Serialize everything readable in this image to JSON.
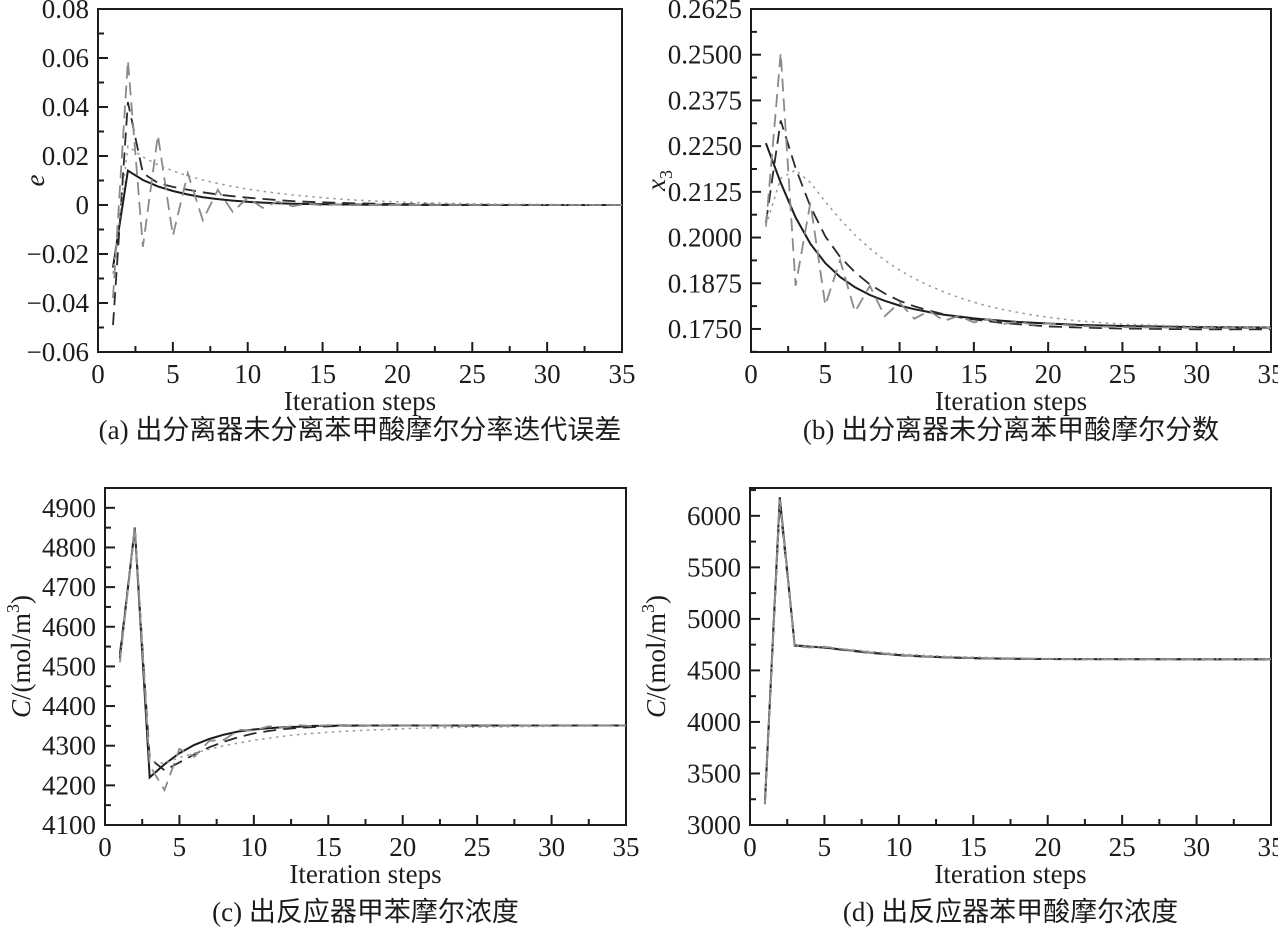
{
  "page": {
    "background_color": "#ffffff",
    "ink_color": "#1c1c1c",
    "gray_line_color": "#8a8a8a",
    "dotted_line_color": "#9a9a9a"
  },
  "chart_data": {
    "note": "see figure.panels - four line charts of iterative convergence"
  },
  "figure": {
    "panels": [
      {
        "id": "a",
        "type": "line",
        "caption": "(a) 出分离器未分离苯甲酸摩尔分率迭代误差",
        "xlabel": "Iteration steps",
        "ylabel_segments": [
          {
            "t": "i",
            "v": "e"
          }
        ],
        "xlim": [
          0,
          35
        ],
        "ylim": [
          -0.06,
          0.08
        ],
        "xticks": [
          0,
          5,
          10,
          15,
          20,
          25,
          30,
          35
        ],
        "xtick_labels": [
          "0",
          "5",
          "10",
          "15",
          "20",
          "25",
          "30",
          "35"
        ],
        "x_minor_step": 2.5,
        "yticks": [
          -0.06,
          -0.04,
          -0.02,
          0,
          0.02,
          0.04,
          0.06,
          0.08
        ],
        "ytick_labels": [
          "−0.06",
          "−0.04",
          "−0.02",
          "0",
          "0.02",
          "0.04",
          "0.06",
          "0.08"
        ],
        "y_minor_step": 0.01,
        "x": [
          1,
          2,
          3,
          4,
          5,
          6,
          7,
          8,
          9,
          10,
          11,
          12,
          13,
          14,
          15,
          16,
          17,
          18,
          19,
          20,
          22,
          25,
          30,
          35
        ],
        "series": [
          {
            "name": "solid",
            "color": "#1c1c1c",
            "dash": "solid",
            "values": [
              -0.0255,
              0.014,
              0.0102,
              0.0076,
              0.0057,
              0.0043,
              0.0032,
              0.0024,
              0.0018,
              0.0013,
              0.001,
              0.0007,
              0.0005,
              0.0004,
              0.0003,
              0.0002,
              0.0002,
              0.0001,
              0.0001,
              0.0001,
              0,
              0,
              0,
              0
            ]
          },
          {
            "name": "dashed",
            "color": "#2a2a2a",
            "dash": "long-dash",
            "values": [
              -0.049,
              0.042,
              0.013,
              0.009,
              0.0074,
              0.0062,
              0.0052,
              0.0043,
              0.0036,
              0.003,
              0.0025,
              0.002,
              0.0016,
              0.0013,
              0.0011,
              0.0009,
              0.0007,
              0.0006,
              0.0005,
              0.0004,
              0.0002,
              0.0001,
              0,
              0
            ]
          },
          {
            "name": "dashed-oscillating",
            "color": "#8a8a8a",
            "dash": "long-dash",
            "values": [
              -0.038,
              0.059,
              -0.017,
              0.0285,
              -0.0125,
              0.013,
              -0.0062,
              0.0062,
              -0.0028,
              0.003,
              -0.0012,
              0.0014,
              -0.0005,
              0.0006,
              -0.0002,
              0.0003,
              -0.0001,
              0.0001,
              0,
              0.0001,
              0,
              0,
              0,
              0
            ]
          },
          {
            "name": "dotted",
            "color": "#9a9a9a",
            "dash": "dot",
            "values": [
              -0.028,
              0.024,
              0.0196,
              0.0164,
              0.0139,
              0.0119,
              0.0102,
              0.0088,
              0.0075,
              0.0065,
              0.0056,
              0.0048,
              0.0041,
              0.0035,
              0.003,
              0.0025,
              0.0021,
              0.0018,
              0.0015,
              0.0013,
              0.0009,
              0.0005,
              0.0002,
              0
            ]
          }
        ]
      },
      {
        "id": "b",
        "type": "line",
        "caption": "(b) 出分离器未分离苯甲酸摩尔分数",
        "xlabel": "Iteration steps",
        "ylabel_segments": [
          {
            "t": "i",
            "v": "x"
          },
          {
            "t": "sub",
            "v": "3"
          }
        ],
        "xlim": [
          0,
          35
        ],
        "ylim": [
          0.1687,
          0.2625
        ],
        "xticks": [
          0,
          5,
          10,
          15,
          20,
          25,
          30,
          35
        ],
        "xtick_labels": [
          "0",
          "5",
          "10",
          "15",
          "20",
          "25",
          "30",
          "35"
        ],
        "x_minor_step": 2.5,
        "yticks": [
          0.175,
          0.1875,
          0.2,
          0.2125,
          0.225,
          0.2375,
          0.25,
          0.2625
        ],
        "ytick_labels": [
          "0.1750",
          "0.1875",
          "0.2000",
          "0.2125",
          "0.2250",
          "0.2375",
          "0.2500",
          "0.2625"
        ],
        "y_minor_step": 0.00625,
        "x": [
          1,
          2,
          3,
          4,
          5,
          6,
          7,
          8,
          9,
          10,
          11,
          12,
          13,
          14,
          15,
          16,
          17,
          18,
          19,
          20,
          22,
          25,
          30,
          35
        ],
        "series": [
          {
            "name": "solid",
            "color": "#1c1c1c",
            "dash": "solid",
            "values": [
              0.2258,
              0.215,
              0.2055,
              0.1983,
              0.193,
              0.1892,
              0.1864,
              0.1843,
              0.1827,
              0.1814,
              0.1804,
              0.1796,
              0.1789,
              0.1784,
              0.1779,
              0.1775,
              0.1772,
              0.1769,
              0.1767,
              0.1765,
              0.1761,
              0.1758,
              0.1755,
              0.1754
            ]
          },
          {
            "name": "dashed",
            "color": "#2a2a2a",
            "dash": "long-dash",
            "values": [
              0.204,
              0.232,
              0.219,
              0.2085,
              0.2003,
              0.1947,
              0.1905,
              0.1872,
              0.1847,
              0.1827,
              0.1812,
              0.18,
              0.179,
              0.1782,
              0.1776,
              0.1771,
              0.1766,
              0.1763,
              0.176,
              0.1757,
              0.1754,
              0.1751,
              0.1749,
              0.1749
            ]
          },
          {
            "name": "dashed-oscillating",
            "color": "#8a8a8a",
            "dash": "long-dash",
            "values": [
              0.203,
              0.2505,
              0.1868,
              0.2095,
              0.1815,
              0.1938,
              0.1797,
              0.1868,
              0.1785,
              0.1822,
              0.1778,
              0.18,
              0.1772,
              0.1786,
              0.1768,
              0.1777,
              0.1764,
              0.177,
              0.1761,
              0.1765,
              0.1758,
              0.1755,
              0.1753,
              0.1752
            ]
          },
          {
            "name": "dotted",
            "color": "#9a9a9a",
            "dash": "dot",
            "values": [
              0.2032,
              0.2162,
              0.2185,
              0.215,
              0.2098,
              0.205,
              0.2007,
              0.197,
              0.1938,
              0.1911,
              0.1888,
              0.1868,
              0.1851,
              0.1836,
              0.1823,
              0.1812,
              0.1803,
              0.1795,
              0.1788,
              0.1782,
              0.1772,
              0.1763,
              0.1757,
              0.1755
            ]
          }
        ]
      },
      {
        "id": "c",
        "type": "line",
        "caption": "(c) 出反应器甲苯摩尔浓度",
        "xlabel": "Iteration steps",
        "ylabel_segments": [
          {
            "t": "i",
            "v": "C"
          },
          {
            "t": "n",
            "v": "/(mol/m"
          },
          {
            "t": "sup",
            "v": "3"
          },
          {
            "t": "n",
            "v": ")"
          }
        ],
        "xlim": [
          0,
          35
        ],
        "ylim": [
          4100,
          4950
        ],
        "xticks": [
          0,
          5,
          10,
          15,
          20,
          25,
          30,
          35
        ],
        "xtick_labels": [
          "0",
          "5",
          "10",
          "15",
          "20",
          "25",
          "30",
          "35"
        ],
        "x_minor_step": 2.5,
        "yticks": [
          4100,
          4200,
          4300,
          4400,
          4500,
          4600,
          4700,
          4800,
          4900
        ],
        "ytick_labels": [
          "4100",
          "4200",
          "4300",
          "4400",
          "4500",
          "4600",
          "4700",
          "4800",
          "4900"
        ],
        "y_minor_step": 50,
        "x": [
          1,
          2,
          3,
          4,
          5,
          6,
          7,
          8,
          9,
          10,
          11,
          12,
          13,
          14,
          15,
          16,
          17,
          18,
          19,
          20,
          22,
          25,
          30,
          35
        ],
        "series": [
          {
            "name": "solid",
            "color": "#1c1c1c",
            "dash": "solid",
            "values": [
              4520,
              4850,
              4220,
              4253,
              4281,
              4302,
              4317,
              4328,
              4336,
              4341,
              4344,
              4347,
              4348,
              4350,
              4350,
              4351,
              4351,
              4351,
              4351,
              4351,
              4351,
              4351,
              4351,
              4351
            ]
          },
          {
            "name": "dashed",
            "color": "#2a2a2a",
            "dash": "long-dash",
            "values": [
              4532,
              4845,
              4268,
              4238,
              4258,
              4278,
              4296,
              4310,
              4322,
              4331,
              4337,
              4342,
              4345,
              4347,
              4349,
              4350,
              4350,
              4351,
              4351,
              4351,
              4351,
              4351,
              4351,
              4351
            ]
          },
          {
            "name": "dashed-oscillating",
            "color": "#8a8a8a",
            "dash": "long-dash",
            "values": [
              4510,
              4852,
              4250,
              4188,
              4292,
              4272,
              4312,
              4315,
              4340,
              4338,
              4349,
              4346,
              4352,
              4349,
              4352,
              4350,
              4352,
              4351,
              4352,
              4351,
              4351,
              4352,
              4351,
              4351
            ]
          },
          {
            "name": "dotted",
            "color": "#9a9a9a",
            "dash": "dot",
            "values": [
              4512,
              4848,
              4262,
              4255,
              4270,
              4281,
              4291,
              4300,
              4307,
              4314,
              4319,
              4324,
              4328,
              4331,
              4334,
              4336,
              4338,
              4340,
              4341,
              4343,
              4345,
              4347,
              4349,
              4350
            ]
          }
        ]
      },
      {
        "id": "d",
        "type": "line",
        "caption": "(d) 出反应器苯甲酸摩尔浓度",
        "xlabel": "Iteration steps",
        "ylabel_segments": [
          {
            "t": "i",
            "v": "C"
          },
          {
            "t": "n",
            "v": "/(mol/m"
          },
          {
            "t": "sup",
            "v": "3"
          },
          {
            "t": "n",
            "v": ")"
          }
        ],
        "xlim": [
          0,
          35
        ],
        "ylim": [
          3000,
          6270
        ],
        "xticks": [
          0,
          5,
          10,
          15,
          20,
          25,
          30,
          35
        ],
        "xtick_labels": [
          "0",
          "5",
          "10",
          "15",
          "20",
          "25",
          "30",
          "35"
        ],
        "x_minor_step": 2.5,
        "yticks": [
          3000,
          3500,
          4000,
          4500,
          5000,
          5500,
          6000
        ],
        "ytick_labels": [
          "3000",
          "3500",
          "4000",
          "4500",
          "5000",
          "5500",
          "6000"
        ],
        "y_minor_step": 250,
        "x": [
          1,
          2,
          3,
          4,
          5,
          6,
          7,
          8,
          9,
          10,
          11,
          12,
          13,
          14,
          15,
          16,
          17,
          18,
          19,
          20,
          22,
          25,
          30,
          35
        ],
        "series": [
          {
            "name": "solid",
            "color": "#1c1c1c",
            "dash": "solid",
            "values": [
              3210,
              6180,
              4740,
              4731,
              4722,
              4706,
              4690,
              4674,
              4661,
              4650,
              4641,
              4634,
              4628,
              4623,
              4620,
              4617,
              4615,
              4613,
              4612,
              4611,
              4610,
              4610,
              4609,
              4609
            ]
          },
          {
            "name": "dashed",
            "color": "#2a2a2a",
            "dash": "long-dash",
            "values": [
              3230,
              6120,
              4746,
              4734,
              4720,
              4703,
              4686,
              4671,
              4658,
              4648,
              4639,
              4632,
              4627,
              4622,
              4618,
              4616,
              4614,
              4612,
              4611,
              4610,
              4609,
              4608,
              4608,
              4608
            ]
          },
          {
            "name": "dashed-oscillating",
            "color": "#8a8a8a",
            "dash": "long-dash",
            "values": [
              3200,
              6160,
              4736,
              4722,
              4730,
              4710,
              4692,
              4676,
              4662,
              4651,
              4642,
              4635,
              4629,
              4624,
              4620,
              4617,
              4615,
              4613,
              4612,
              4611,
              4610,
              4609,
              4609,
              4609
            ]
          },
          {
            "name": "dotted",
            "color": "#9a9a9a",
            "dash": "dot",
            "values": [
              3220,
              6140,
              4742,
              4736,
              4727,
              4713,
              4699,
              4685,
              4672,
              4661,
              4652,
              4644,
              4638,
              4633,
              4629,
              4625,
              4622,
              4620,
              4618,
              4616,
              4614,
              4612,
              4611,
              4610
            ]
          }
        ]
      }
    ]
  }
}
